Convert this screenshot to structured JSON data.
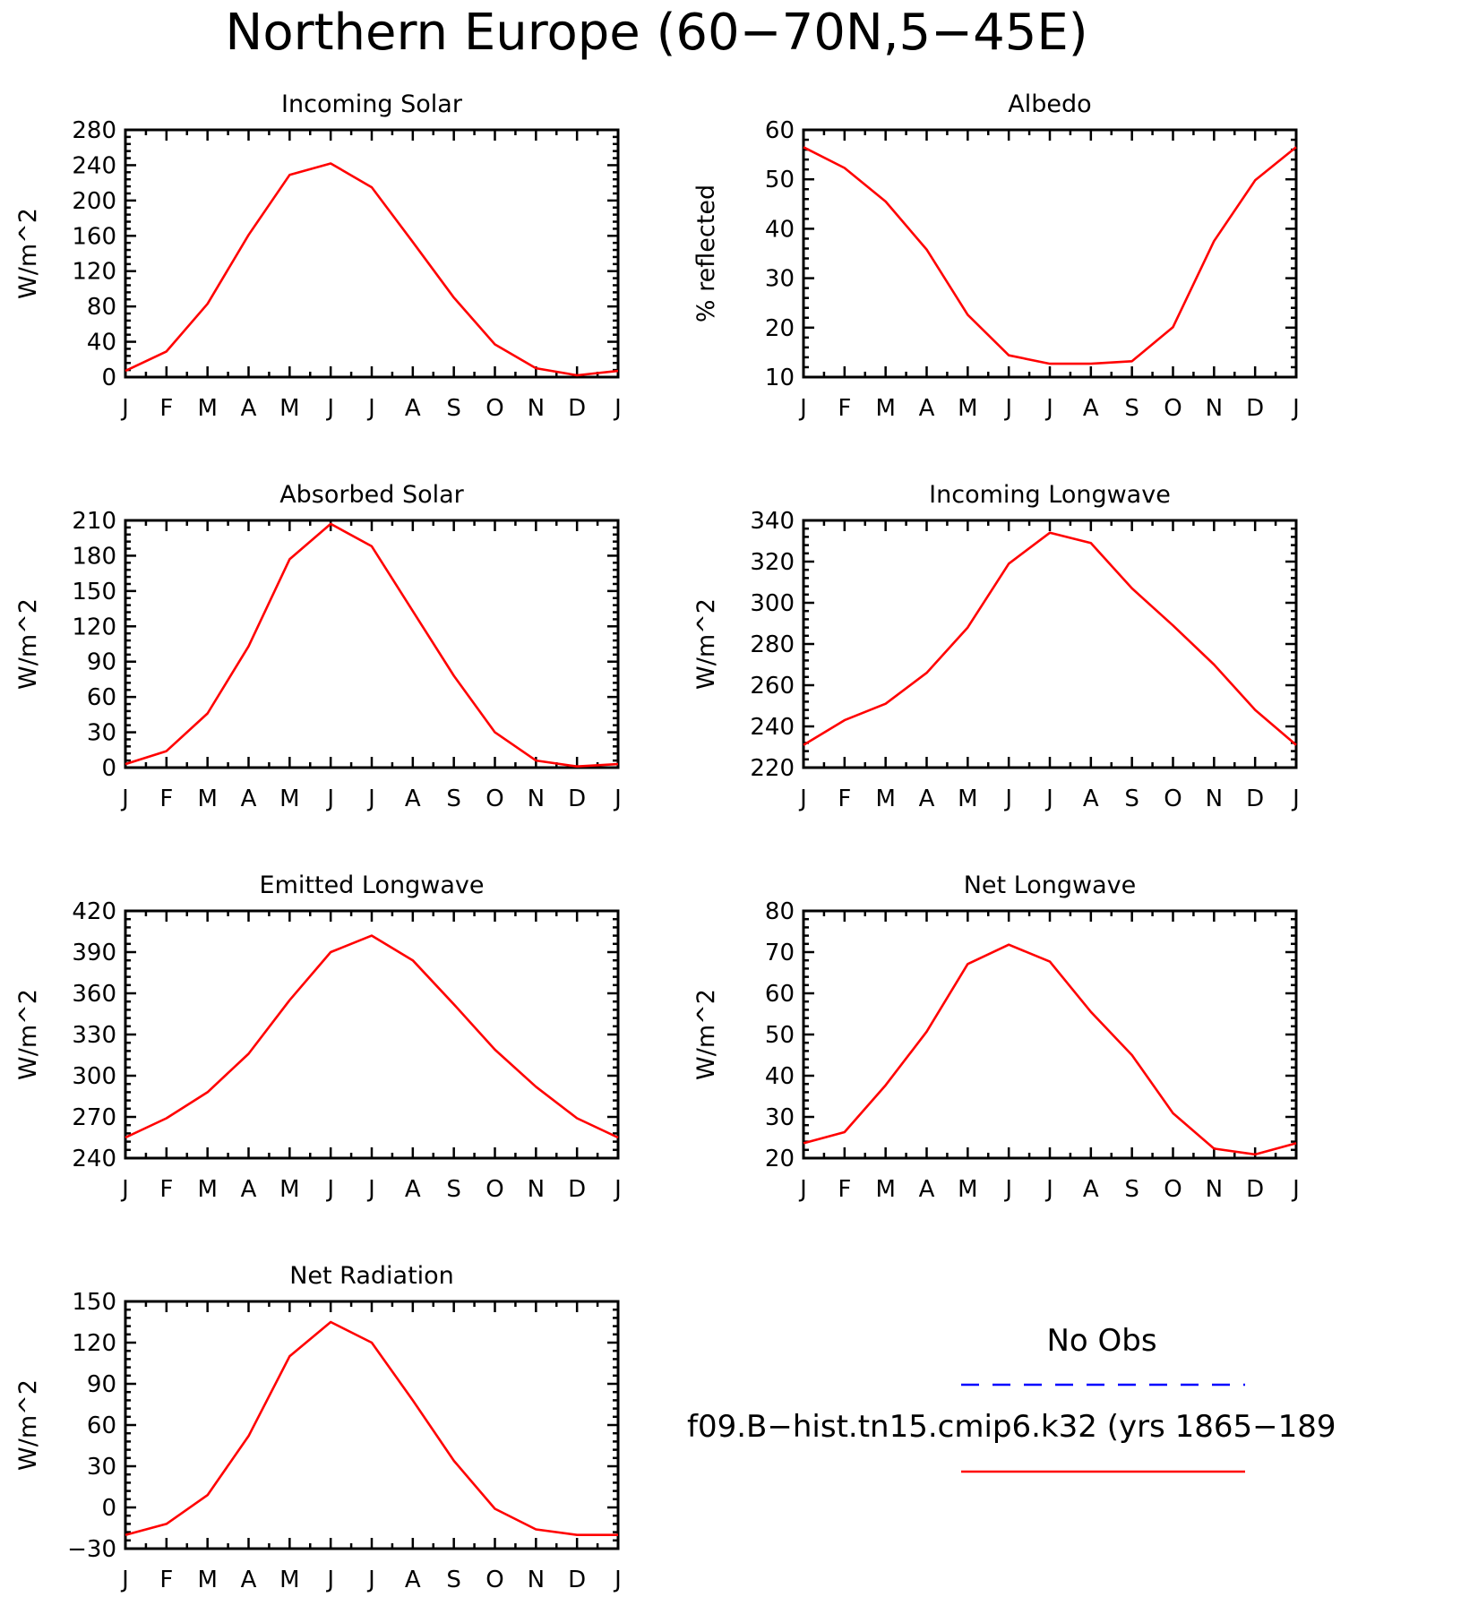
{
  "title": "Northern Europe (60−70N,5−45E)",
  "colors": {
    "model": "#ff0000",
    "obs": "#0000ff"
  },
  "legend": {
    "entries": [
      {
        "label": "No Obs",
        "style": "dashed",
        "color": "#0000ff"
      },
      {
        "label": "f09.B−hist.tn15.cmip6.k32 (yrs 1865−189",
        "style": "solid",
        "color": "#ff0000"
      }
    ]
  },
  "chart_data": [
    {
      "type": "line",
      "title": "Incoming Solar",
      "xlabel": "",
      "ylabel": "W/m^2",
      "categories": [
        "J",
        "F",
        "M",
        "A",
        "M",
        "J",
        "J",
        "A",
        "S",
        "O",
        "N",
        "D",
        "J"
      ],
      "ylim": [
        0,
        280
      ],
      "yticks": [
        0,
        40,
        80,
        120,
        160,
        200,
        240,
        280
      ],
      "ytick_labels": [
        "0",
        "40",
        "80",
        "120",
        "160",
        "200",
        "240",
        "280"
      ],
      "series": [
        {
          "values": [
            7,
            29,
            83,
            161,
            229,
            242,
            215,
            153,
            90,
            37,
            10,
            2,
            7
          ]
        }
      ]
    },
    {
      "type": "line",
      "title": "Albedo",
      "xlabel": "",
      "ylabel": "% reflected",
      "categories": [
        "J",
        "F",
        "M",
        "A",
        "M",
        "J",
        "J",
        "A",
        "S",
        "O",
        "N",
        "D",
        "J"
      ],
      "ylim": [
        10,
        60
      ],
      "yticks": [
        10,
        20,
        30,
        40,
        50,
        60
      ],
      "ytick_labels": [
        "10",
        "20",
        "30",
        "40",
        "50",
        "60"
      ],
      "series": [
        {
          "values": [
            56.5,
            52.3,
            45.5,
            35.8,
            22.6,
            14.4,
            12.7,
            12.7,
            13.2,
            20.1,
            37.5,
            49.8,
            56.5
          ]
        }
      ]
    },
    {
      "type": "line",
      "title": "Absorbed Solar",
      "xlabel": "",
      "ylabel": "W/m^2",
      "categories": [
        "J",
        "F",
        "M",
        "A",
        "M",
        "J",
        "J",
        "A",
        "S",
        "O",
        "N",
        "D",
        "J"
      ],
      "ylim": [
        0,
        210
      ],
      "yticks": [
        0,
        30,
        60,
        90,
        120,
        150,
        180,
        210
      ],
      "ytick_labels": [
        "0",
        "30",
        "60",
        "90",
        "120",
        "150",
        "180",
        "210"
      ],
      "series": [
        {
          "values": [
            3,
            14,
            46,
            103,
            177,
            207,
            188,
            133,
            78,
            30,
            6,
            1,
            3
          ]
        }
      ]
    },
    {
      "type": "line",
      "title": "Incoming Longwave",
      "xlabel": "",
      "ylabel": "W/m^2",
      "categories": [
        "J",
        "F",
        "M",
        "A",
        "M",
        "J",
        "J",
        "A",
        "S",
        "O",
        "N",
        "D",
        "J"
      ],
      "ylim": [
        220,
        340
      ],
      "yticks": [
        220,
        240,
        260,
        280,
        300,
        320,
        340
      ],
      "ytick_labels": [
        "220",
        "240",
        "260",
        "280",
        "300",
        "320",
        "340"
      ],
      "series": [
        {
          "values": [
            231,
            243,
            251,
            266,
            288,
            319,
            334,
            329,
            307,
            289,
            270,
            248,
            231
          ]
        }
      ]
    },
    {
      "type": "line",
      "title": "Emitted Longwave",
      "xlabel": "",
      "ylabel": "W/m^2",
      "categories": [
        "J",
        "F",
        "M",
        "A",
        "M",
        "J",
        "J",
        "A",
        "S",
        "O",
        "N",
        "D",
        "J"
      ],
      "ylim": [
        240,
        420
      ],
      "yticks": [
        240,
        270,
        300,
        330,
        360,
        390,
        420
      ],
      "ytick_labels": [
        "240",
        "270",
        "300",
        "330",
        "360",
        "390",
        "420"
      ],
      "series": [
        {
          "values": [
            255,
            269,
            288,
            316,
            355,
            390,
            402,
            384,
            352,
            319,
            292,
            269,
            255
          ]
        }
      ]
    },
    {
      "type": "line",
      "title": "Net Longwave",
      "xlabel": "",
      "ylabel": "W/m^2",
      "categories": [
        "J",
        "F",
        "M",
        "A",
        "M",
        "J",
        "J",
        "A",
        "S",
        "O",
        "N",
        "D",
        "J"
      ],
      "ylim": [
        20,
        80
      ],
      "yticks": [
        20,
        30,
        40,
        50,
        60,
        70,
        80
      ],
      "ytick_labels": [
        "20",
        "30",
        "40",
        "50",
        "60",
        "70",
        "80"
      ],
      "series": [
        {
          "values": [
            23.6,
            26.3,
            37.7,
            50.7,
            67.1,
            71.8,
            67.7,
            55.5,
            45.0,
            30.9,
            22.3,
            20.9,
            23.6
          ]
        }
      ]
    },
    {
      "type": "line",
      "title": "Net Radiation",
      "xlabel": "",
      "ylabel": "W/m^2",
      "categories": [
        "J",
        "F",
        "M",
        "A",
        "M",
        "J",
        "J",
        "A",
        "S",
        "O",
        "N",
        "D",
        "J"
      ],
      "ylim": [
        -30,
        150
      ],
      "yticks": [
        -30,
        0,
        30,
        60,
        90,
        120,
        150
      ],
      "ytick_labels": [
        "−30",
        "0",
        "30",
        "60",
        "90",
        "120",
        "150"
      ],
      "series": [
        {
          "values": [
            -20,
            -12,
            9,
            52,
            110,
            135,
            120,
            78,
            34,
            -1,
            -16,
            -20,
            -20
          ]
        }
      ]
    }
  ]
}
